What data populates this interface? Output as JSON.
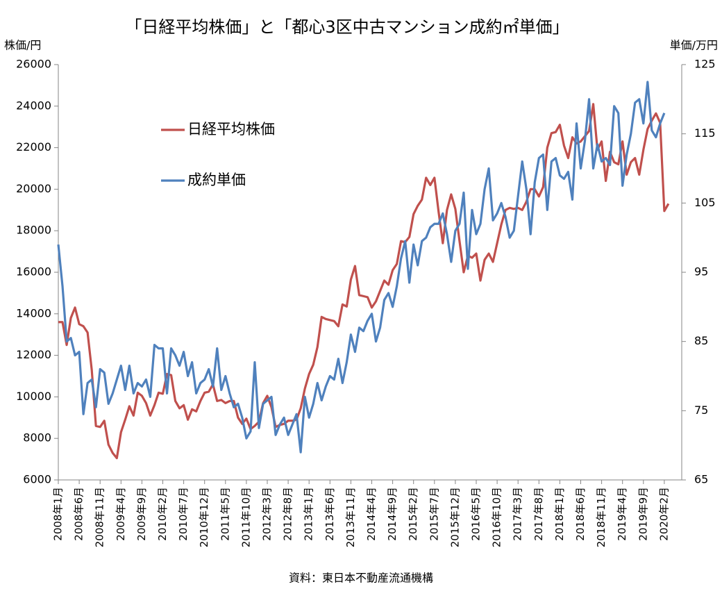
{
  "chart_data": {
    "type": "line",
    "title": "「日経平均株価」と「都心3区中古マンション成約㎡単価」",
    "y_label": "株価/円",
    "y2_label": "単価/万円",
    "source": "資料：東日本不動産流通機構",
    "legend": "upper left",
    "categories": [
      "2008年1月",
      null,
      null,
      null,
      null,
      "2008年6月",
      null,
      null,
      null,
      null,
      "2008年11月",
      null,
      null,
      null,
      null,
      "2009年4月",
      null,
      null,
      null,
      null,
      "2009年9月",
      null,
      null,
      null,
      null,
      "2010年2月",
      null,
      null,
      null,
      null,
      "2010年7月",
      null,
      null,
      null,
      null,
      "2010年12月",
      null,
      null,
      null,
      null,
      "2011年5月",
      null,
      null,
      null,
      null,
      "2011年10月",
      null,
      null,
      null,
      null,
      "2012年3月",
      null,
      null,
      null,
      null,
      "2012年8月",
      null,
      null,
      null,
      null,
      "2013年1月",
      null,
      null,
      null,
      null,
      "2013年6月",
      null,
      null,
      null,
      null,
      "2013年11月",
      null,
      null,
      null,
      null,
      "2014年4月",
      null,
      null,
      null,
      null,
      "2014年9月",
      null,
      null,
      null,
      null,
      "2015年2月",
      null,
      null,
      null,
      null,
      "2015年7月",
      null,
      null,
      null,
      null,
      "2015年12月",
      null,
      null,
      null,
      null,
      "2016年5月",
      null,
      null,
      null,
      null,
      "2016年10月",
      null,
      null,
      null,
      null,
      "2017年3月",
      null,
      null,
      null,
      null,
      "2017年8月",
      null,
      null,
      null,
      null,
      "2018年1月",
      null,
      null,
      null,
      null,
      "2018年6月",
      null,
      null,
      null,
      null,
      "2018年11月",
      null,
      null,
      null,
      null,
      "2019年4月",
      null,
      null,
      null,
      null,
      "2019年9月",
      null,
      null,
      null,
      null,
      "2020年2月",
      null
    ],
    "series": [
      {
        "name": "日経平均株価",
        "color": "#c0504d",
        "axis": "y",
        "values": [
          13600,
          13600,
          12500,
          13800,
          14300,
          13500,
          13400,
          13100,
          11300,
          8600,
          8550,
          8850,
          7700,
          7300,
          7050,
          8300,
          8900,
          9550,
          9100,
          10200,
          10050,
          9700,
          9100,
          9600,
          10200,
          10150,
          11100,
          11050,
          9800,
          9450,
          9600,
          8900,
          9400,
          9300,
          9800,
          10200,
          10250,
          10600,
          9800,
          9850,
          9700,
          9800,
          9800,
          9000,
          8700,
          8950,
          8450,
          8600,
          8800,
          9700,
          10050,
          9500,
          8550,
          8650,
          8700,
          8850,
          8850,
          8900,
          9450,
          10400,
          11100,
          11550,
          12400,
          13850,
          13750,
          13700,
          13650,
          13400,
          14450,
          14350,
          15650,
          16300,
          14900,
          14850,
          14800,
          14300,
          14600,
          15100,
          15600,
          15400,
          16100,
          16400,
          17500,
          17450,
          17700,
          18800,
          19200,
          19500,
          20550,
          20200,
          20550,
          18900,
          17400,
          19000,
          19750,
          19050,
          17500,
          16000,
          16800,
          16700,
          16900,
          15600,
          16600,
          16900,
          16500,
          17400,
          18300,
          19000,
          19100,
          19050,
          19100,
          19000,
          19400,
          20000,
          20000,
          19650,
          20100,
          22000,
          22700,
          22750,
          23100,
          22100,
          21500,
          22500,
          22200,
          22300,
          22550,
          22800,
          24100,
          21900,
          22300,
          20400,
          21800,
          21300,
          21200,
          22300,
          20700,
          21300,
          21500,
          20700,
          21900,
          22900,
          23300,
          23650,
          23200,
          18950,
          19300
        ]
      },
      {
        "name": "成約単価",
        "color": "#4f81bd",
        "axis": "y2",
        "values": [
          99,
          93,
          85,
          85.5,
          83,
          83.5,
          74.5,
          79,
          79.5,
          75.5,
          81,
          80.5,
          76,
          77.5,
          79.5,
          81.5,
          78,
          81.5,
          77.5,
          79,
          78.5,
          79.5,
          77,
          84.5,
          84,
          84,
          77.5,
          84,
          83,
          81.5,
          83.5,
          80,
          82,
          77.5,
          79,
          79.5,
          81,
          78.5,
          84,
          78,
          80,
          77.5,
          75.5,
          76,
          74,
          71,
          72,
          82,
          72.5,
          76,
          76.5,
          77,
          71.5,
          73,
          74,
          71.5,
          73,
          74.5,
          69,
          77,
          74,
          76,
          79,
          76.5,
          78.5,
          80,
          79.5,
          82.5,
          79,
          82,
          86,
          83.5,
          87,
          86.5,
          88,
          89,
          85,
          87,
          91,
          92,
          90,
          93,
          97,
          99.5,
          93.5,
          99,
          96,
          99.5,
          100,
          101.5,
          102,
          102,
          103.5,
          100.5,
          96.5,
          101,
          102,
          106.5,
          95.5,
          104,
          100.5,
          102,
          107,
          110,
          102.5,
          103.5,
          105,
          103,
          100,
          101,
          106,
          111,
          107,
          100.5,
          108,
          111.5,
          112,
          104,
          111,
          111.5,
          109,
          108.5,
          109.5,
          105.5,
          116.5,
          110,
          114,
          120,
          110,
          113.5,
          111,
          111.5,
          110.5,
          119,
          118,
          107.5,
          112,
          115,
          119.5,
          120,
          116.5,
          122.5,
          115.5,
          114.5,
          116.5,
          118,
          null
        ]
      }
    ],
    "ylim": [
      6000,
      26000
    ],
    "yticks": [
      6000,
      8000,
      10000,
      12000,
      14000,
      16000,
      18000,
      20000,
      22000,
      24000,
      26000
    ],
    "y2lim": [
      65,
      125
    ],
    "y2ticks": [
      65,
      75,
      85,
      95,
      105,
      115,
      125
    ],
    "grid": false
  }
}
